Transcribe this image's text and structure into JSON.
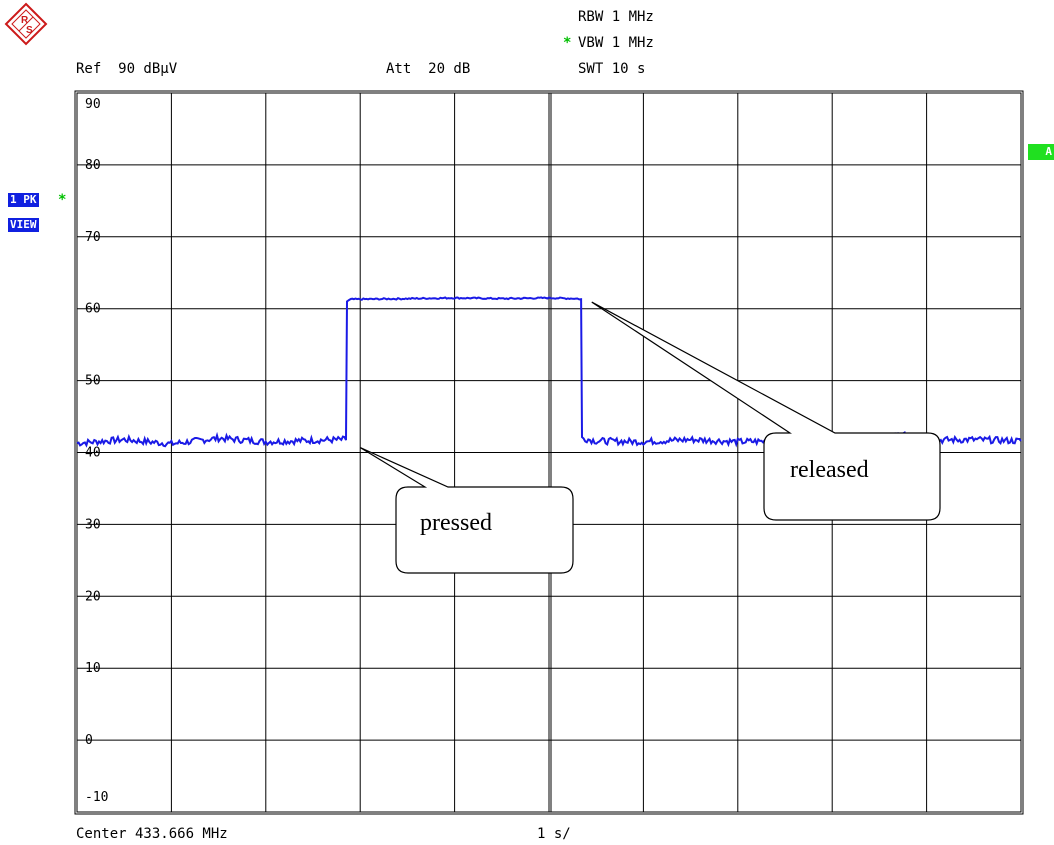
{
  "header": {
    "rbw": "RBW 1 MHz",
    "vbw_star": "*",
    "vbw": "VBW 1 MHz",
    "ref": "Ref  90 dBµV",
    "att": "Att  20 dB",
    "swt": "SWT 10 s"
  },
  "side": {
    "trace_label": "1 PK",
    "trace_star": "*",
    "view_label": "VIEW",
    "a_label": "A"
  },
  "footer": {
    "center": "Center 433.666 MHz",
    "per_div": "1 s/"
  },
  "colors": {
    "trace": "#1a1ae6",
    "badge_blue": "#1020e0",
    "badge_green": "#20e020",
    "logo": "#cc1a1a"
  },
  "icons": {
    "logo": "rohde-schwarz-logo-icon"
  },
  "chart_data": {
    "type": "line",
    "ylim": [
      -10,
      90
    ],
    "yticks": [
      "90",
      "80",
      "70",
      "60",
      "50",
      "40",
      "30",
      "20",
      "10",
      "0",
      "-10"
    ],
    "x_divisions": 10,
    "x_unit_per_div": "1 s",
    "grid": true,
    "series": [
      {
        "x": [
          0,
          0.5,
          1,
          1.5,
          2,
          2.5,
          2.85,
          2.86,
          2.9,
          3.5,
          4,
          4.5,
          5,
          5.3,
          5.34,
          5.35,
          5.5,
          6,
          6.5,
          7,
          7.5,
          7.8,
          8,
          8.5,
          8.7,
          9,
          9.5,
          10
        ],
        "y": [
          41.3,
          41.8,
          41.2,
          42.0,
          41.5,
          41.7,
          41.8,
          61.0,
          61.3,
          61.4,
          61.5,
          61.4,
          61.5,
          61.4,
          61.3,
          42.0,
          41.6,
          41.5,
          41.8,
          41.5,
          41.6,
          42.3,
          41.8,
          41.6,
          42.5,
          41.7,
          41.8,
          41.6
        ]
      }
    ],
    "annotations": [
      {
        "text": "pressed",
        "x": 2.95,
        "y": 41.5
      },
      {
        "text": "released",
        "x": 5.4,
        "y": 61.2
      }
    ]
  }
}
